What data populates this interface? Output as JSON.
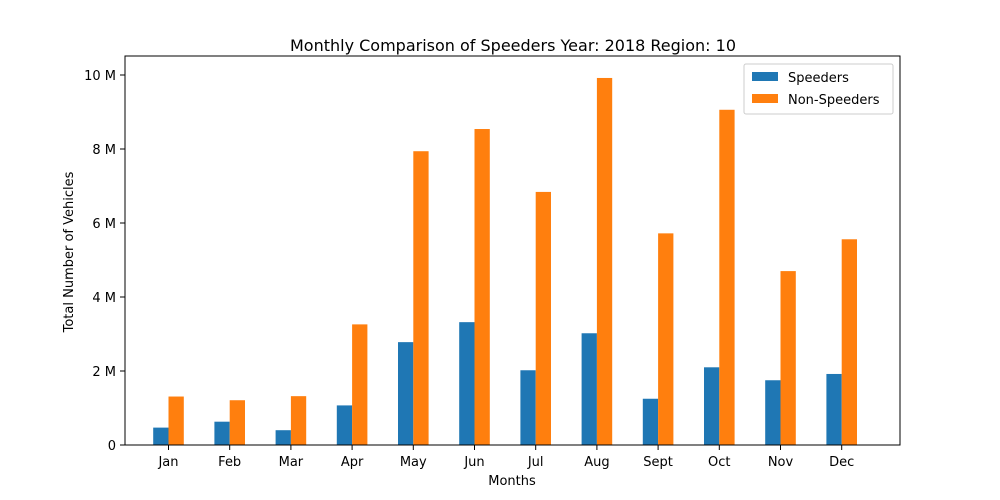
{
  "chart_data": {
    "type": "bar",
    "title": "Monthly Comparison of Speeders Year: 2018 Region: 10",
    "xlabel": "Months",
    "ylabel": "Total Number of Vehicles",
    "categories": [
      "Jan",
      "Feb",
      "Mar",
      "Apr",
      "May",
      "Jun",
      "Jul",
      "Aug",
      "Sept",
      "Oct",
      "Nov",
      "Dec"
    ],
    "series": [
      {
        "name": "Speeders",
        "color": "#1f77b4",
        "values": [
          470000,
          630000,
          400000,
          1070000,
          2780000,
          3320000,
          2020000,
          3020000,
          1250000,
          2100000,
          1750000,
          1920000
        ]
      },
      {
        "name": "Non-Speeders",
        "color": "#ff7f0e",
        "values": [
          1310000,
          1210000,
          1320000,
          3260000,
          7940000,
          8540000,
          6840000,
          9920000,
          5720000,
          9060000,
          4700000,
          5560000
        ]
      }
    ],
    "ylim": [
      0,
      10000000
    ],
    "yticks": [
      0,
      2000000,
      4000000,
      6000000,
      8000000,
      10000000
    ],
    "ytick_labels": [
      "0",
      "2 M",
      "4 M",
      "6 M",
      "8 M",
      "10 M"
    ],
    "grid": false,
    "legend_position": "top-right"
  }
}
